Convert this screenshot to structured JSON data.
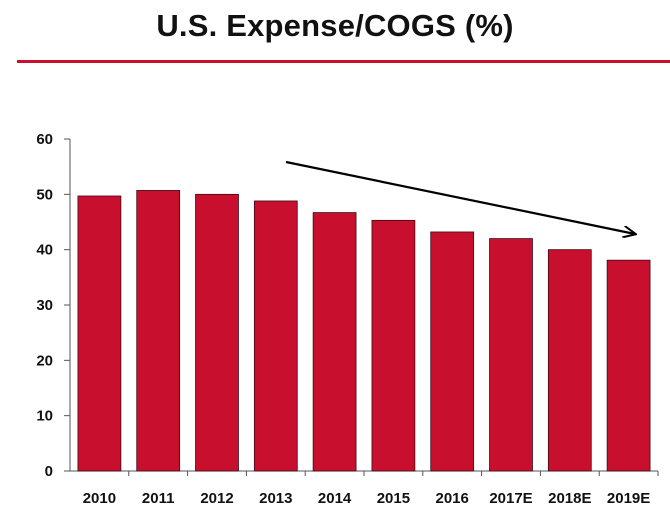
{
  "chart_data": {
    "type": "bar",
    "title": "U.S. Expense/COGS (%)",
    "categories": [
      "2010",
      "2011",
      "2012",
      "2013",
      "2014",
      "2015",
      "2016",
      "2017E",
      "2018E",
      "2019E"
    ],
    "values": [
      49.7,
      50.7,
      50.0,
      48.8,
      46.7,
      45.3,
      43.2,
      42.0,
      40.0,
      38.1
    ],
    "ylim": [
      0,
      60
    ],
    "yticks": [
      0,
      10,
      20,
      30,
      40,
      50,
      60
    ],
    "xlabel": "",
    "ylabel": "",
    "grid": false,
    "bar_color": "#c8102e",
    "rule_color": "#c8102e",
    "annotations": [
      {
        "type": "arrow",
        "direction": "downward trend",
        "color": "#000000"
      }
    ]
  }
}
